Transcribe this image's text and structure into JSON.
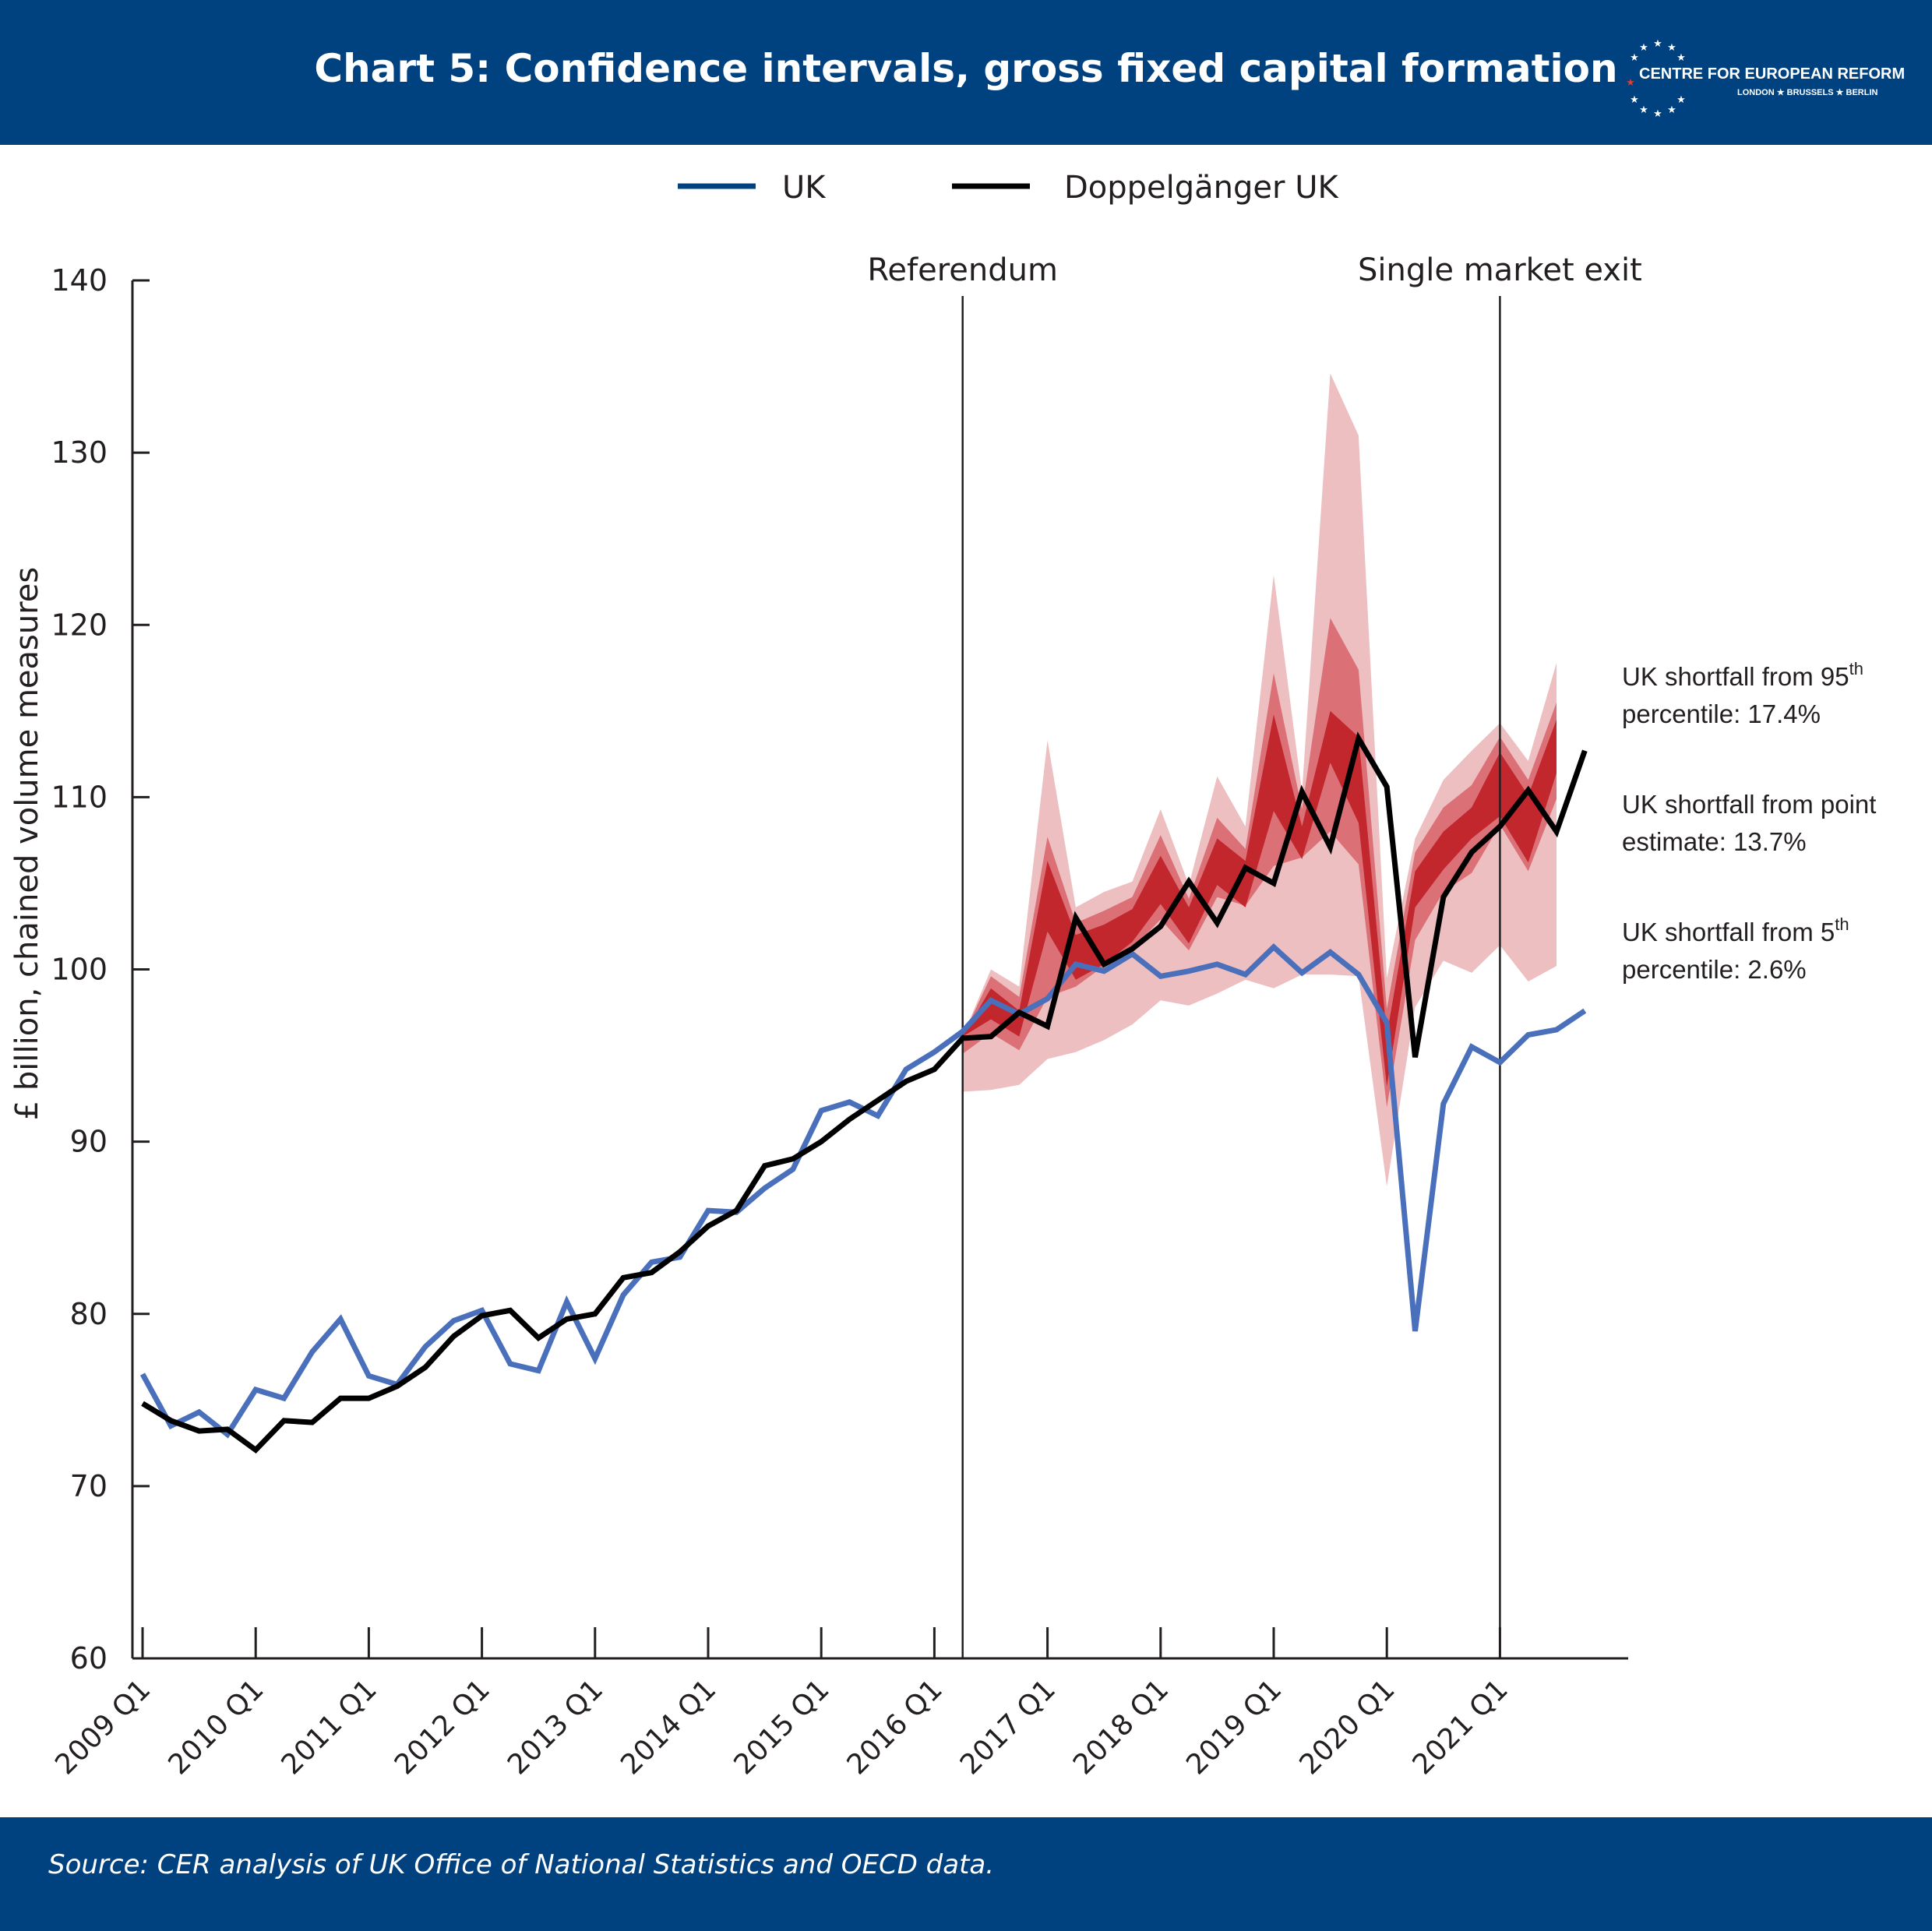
{
  "header": {
    "title": "Chart 5: Confidence intervals, gross fixed capital formation",
    "logo_name": "CENTRE FOR EUROPEAN REFORM",
    "logo_cities": "LONDON ★ BRUSSELS ★ BERLIN"
  },
  "footer": {
    "source": "Source: CER analysis of UK Office of National Statistics and OECD data."
  },
  "colors": {
    "brand": "#004180",
    "uk_line": "#4a6fbb",
    "doppel_line": "#000000",
    "band_90": "#edbfc1",
    "band_50": "#db7177",
    "band_20": "#c1272d"
  },
  "chart_data": {
    "type": "line",
    "title": "",
    "ylabel": "£ billion, chained volume measures",
    "xlabel": "",
    "ylim": [
      60,
      140
    ],
    "yticks": [
      60,
      70,
      80,
      90,
      100,
      110,
      120,
      130,
      140
    ],
    "x_start": "2009 Q1",
    "x_end": "2021 Q4",
    "x_tick_labels": [
      "2009 Q1",
      "2010 Q1",
      "2011 Q1",
      "2012 Q1",
      "2013 Q1",
      "2014 Q1",
      "2015 Q1",
      "2016 Q1",
      "2017 Q1",
      "2018 Q1",
      "2019 Q1",
      "2020 Q1",
      "2021 Q1"
    ],
    "legend": [
      "UK",
      "Doppelgänger UK"
    ],
    "legend_position": "top-center",
    "grid": false,
    "events": [
      {
        "label": "Referendum",
        "quarter": "2016 Q2"
      },
      {
        "label": "Single market exit",
        "quarter": "2021 Q1"
      }
    ],
    "annotations": [
      {
        "lines": [
          "UK shortfall from 95",
          "percentile: 17.4%"
        ],
        "sup": "th",
        "value": 101
      },
      {
        "lines": [
          "UK shortfall from point",
          "estimate: 13.7%"
        ],
        "sup": "",
        "value": 108
      },
      {
        "lines": [
          "UK shortfall from 5",
          "percentile: 2.6%"
        ],
        "sup": "th",
        "value": 116
      }
    ],
    "series": [
      {
        "name": "UK",
        "values": [
          76.5,
          73.5,
          74.3,
          73.0,
          75.6,
          75.1,
          77.8,
          79.7,
          76.4,
          75.9,
          78.1,
          79.6,
          80.2,
          77.1,
          76.7,
          80.7,
          77.4,
          81.1,
          83.0,
          83.3,
          86.0,
          85.9,
          87.3,
          88.4,
          91.8,
          92.3,
          91.5,
          94.2,
          95.2,
          96.4,
          98.2,
          97.4,
          98.3,
          100.3,
          99.9,
          100.9,
          99.6,
          99.9,
          100.3,
          99.7,
          101.3,
          99.8,
          101.0,
          99.7,
          96.9,
          79.0,
          92.2,
          95.5,
          94.6,
          96.2,
          96.5,
          97.6
        ]
      },
      {
        "name": "Doppelgänger UK",
        "values": [
          74.8,
          73.8,
          73.2,
          73.3,
          72.1,
          73.8,
          73.7,
          75.1,
          75.1,
          75.8,
          76.9,
          78.7,
          79.9,
          80.2,
          78.6,
          79.7,
          80.0,
          82.1,
          82.4,
          83.6,
          85.1,
          86.0,
          88.6,
          89.0,
          90.0,
          91.3,
          92.4,
          93.5,
          94.2,
          96.0,
          96.1,
          97.5,
          96.7,
          103.0,
          100.3,
          101.2,
          102.5,
          105.1,
          102.7,
          105.9,
          105.0,
          110.3,
          107.1,
          113.4,
          110.6,
          94.9,
          104.2,
          106.8,
          108.3,
          110.4,
          108.0,
          112.7
        ]
      }
    ],
    "confidence_bands": {
      "start_quarter": "2016 Q2",
      "p95": [
        96.1,
        100.0,
        99.0,
        113.3,
        103.6,
        104.5,
        105.1,
        109.3,
        104.9,
        111.2,
        108.3,
        122.9,
        110.3,
        134.6,
        131.0,
        99.5,
        107.6,
        111.0,
        112.7,
        114.3,
        112.1,
        117.8
      ],
      "p80": [
        96.1,
        99.6,
        98.4,
        107.7,
        102.7,
        103.4,
        104.2,
        107.8,
        104.1,
        108.8,
        107.0,
        117.2,
        109.3,
        120.4,
        117.4,
        97.7,
        106.8,
        109.4,
        110.7,
        113.5,
        111.0,
        115.5
      ],
      "p60": [
        96.1,
        98.9,
        97.6,
        106.3,
        102.0,
        102.6,
        103.5,
        106.6,
        103.6,
        107.6,
        106.3,
        114.8,
        108.3,
        115.0,
        113.5,
        96.2,
        105.7,
        108.0,
        109.4,
        112.6,
        110.1,
        114.5
      ],
      "p40": [
        96.1,
        97.1,
        96.1,
        102.2,
        99.4,
        100.3,
        101.6,
        103.8,
        101.5,
        104.9,
        103.6,
        109.2,
        106.4,
        112.0,
        108.5,
        93.2,
        103.6,
        105.8,
        107.6,
        108.9,
        106.2,
        111.4
      ],
      "p20": [
        95.1,
        96.3,
        95.3,
        98.4,
        99.0,
        100.2,
        101.2,
        102.9,
        101.1,
        104.2,
        103.7,
        106.0,
        106.5,
        108.0,
        106.1,
        92.0,
        101.7,
        104.5,
        105.6,
        108.4,
        105.7,
        109.9
      ],
      "p5": [
        92.9,
        93.0,
        93.3,
        94.8,
        95.2,
        95.9,
        96.8,
        98.2,
        97.9,
        98.6,
        99.4,
        98.9,
        99.7,
        99.7,
        99.6,
        87.4,
        97.8,
        100.5,
        99.8,
        101.4,
        99.3,
        100.2
      ]
    }
  }
}
